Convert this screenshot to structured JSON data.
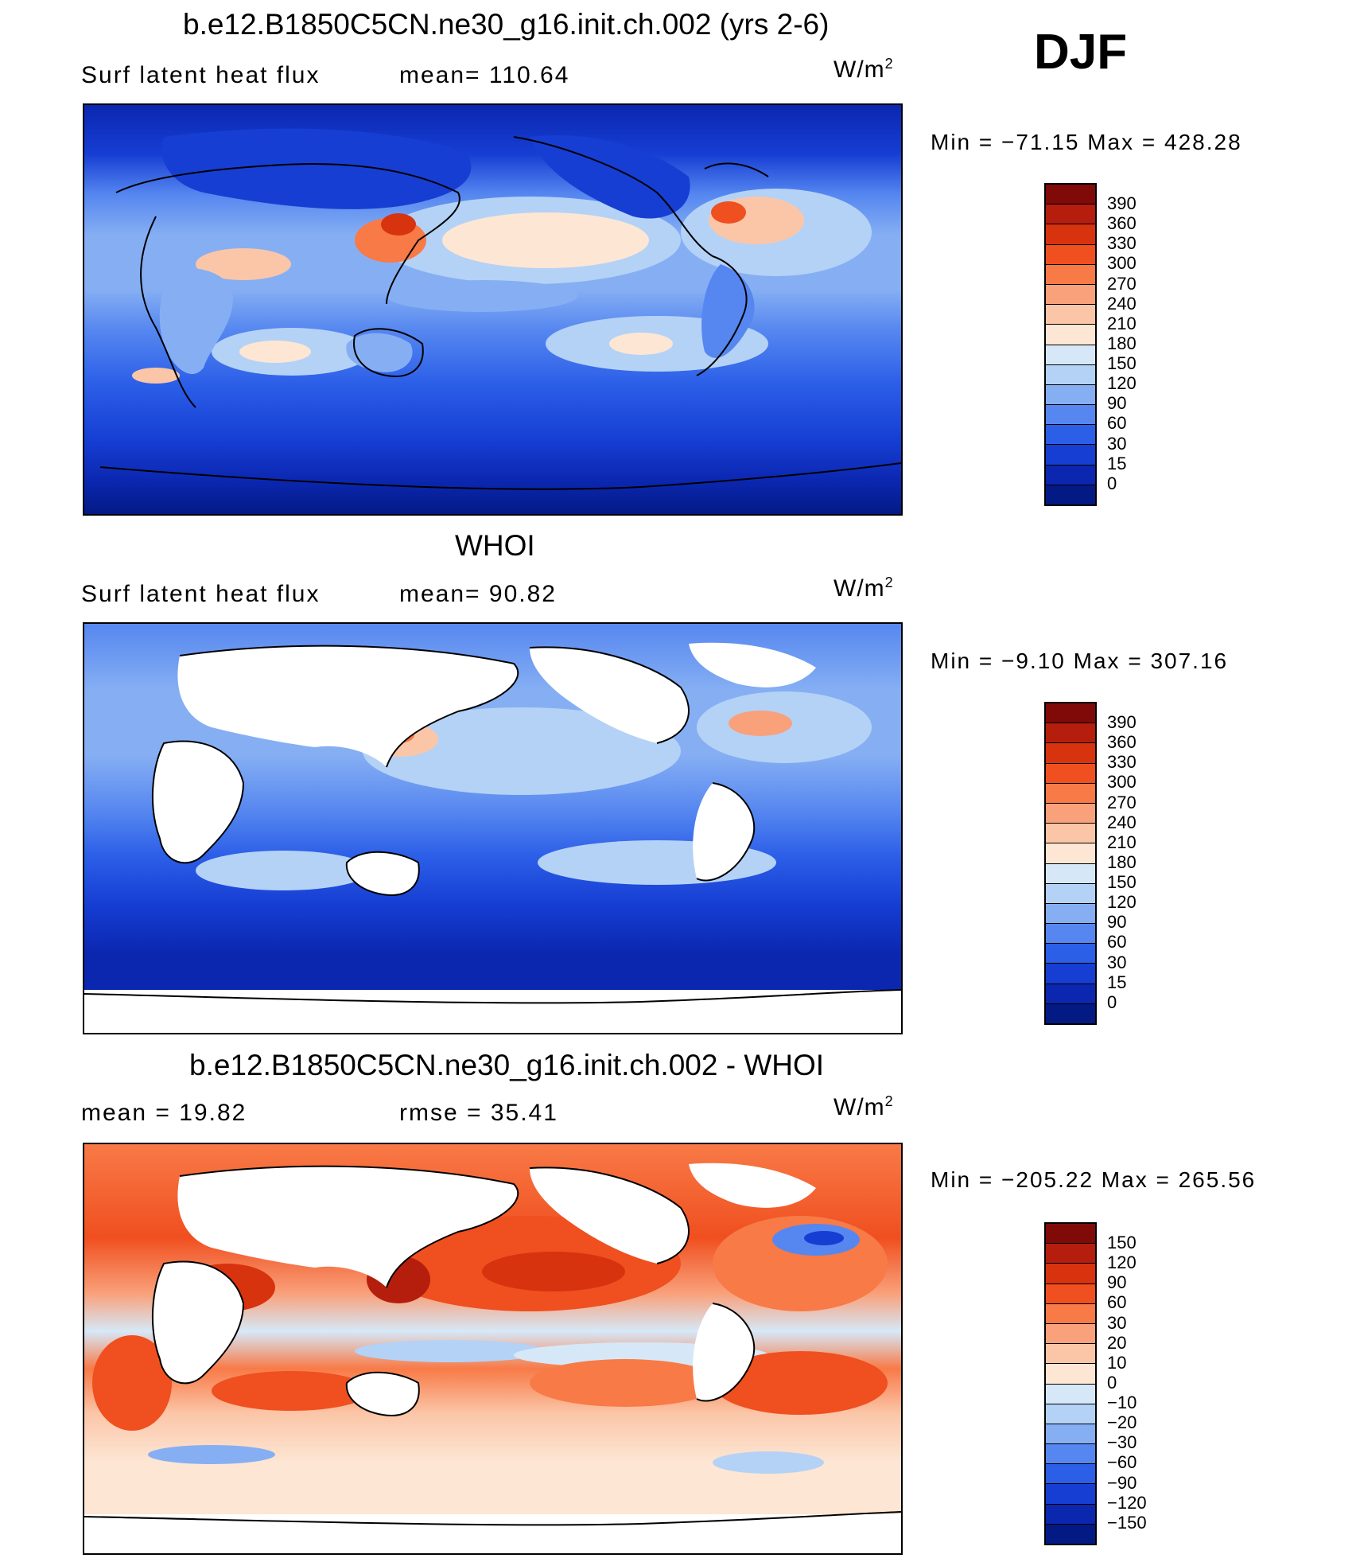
{
  "season": "DJF",
  "panels": [
    {
      "title": "b.e12.B1850C5CN.ne30_g16.init.ch.002 (yrs 2-6)",
      "left_label": "Surf  latent  heat  flux",
      "mid_label": "mean=  110.64",
      "units": "W/m",
      "units_exp": "2",
      "minmax": "Min  =  −71.15  Max  =  428.28",
      "colorbar": {
        "labels": [
          "390",
          "360",
          "330",
          "300",
          "270",
          "240",
          "210",
          "180",
          "150",
          "120",
          "90",
          "60",
          "30",
          "15",
          "0"
        ],
        "colors": [
          "#7f0a08",
          "#b51e0d",
          "#d7330f",
          "#f04f1f",
          "#f87a47",
          "#f9a17b",
          "#fbc6a8",
          "#fde6d4",
          "#d6e8f8",
          "#b4d2f6",
          "#86aff3",
          "#5687f0",
          "#2c5fe8",
          "#163ed3",
          "#0b27b0",
          "#031a84"
        ]
      }
    },
    {
      "title": "WHOI",
      "left_label": "Surf  latent  heat  flux",
      "mid_label": "mean=   90.82",
      "units": "W/m",
      "units_exp": "2",
      "minmax": "Min  =   −9.10  Max  =  307.16",
      "colorbar": {
        "labels": [
          "390",
          "360",
          "330",
          "300",
          "270",
          "240",
          "210",
          "180",
          "150",
          "120",
          "90",
          "60",
          "30",
          "15",
          "0"
        ],
        "colors": [
          "#7f0a08",
          "#b51e0d",
          "#d7330f",
          "#f04f1f",
          "#f87a47",
          "#f9a17b",
          "#fbc6a8",
          "#fde6d4",
          "#d6e8f8",
          "#b4d2f6",
          "#86aff3",
          "#5687f0",
          "#2c5fe8",
          "#163ed3",
          "#0b27b0",
          "#031a84"
        ]
      }
    },
    {
      "title": "b.e12.B1850C5CN.ne30_g16.init.ch.002 - WHOI",
      "left_label": "mean  =    19.82",
      "mid_label": "rmse  =    35.41",
      "units": "W/m",
      "units_exp": "2",
      "minmax": "Min  =  −205.22  Max  =  265.56",
      "colorbar": {
        "labels": [
          "150",
          "120",
          "90",
          "60",
          "30",
          "20",
          "10",
          "0",
          "−10",
          "−20",
          "−30",
          "−60",
          "−90",
          "−120",
          "−150"
        ],
        "colors": [
          "#7f0a08",
          "#b51e0d",
          "#d7330f",
          "#f04f1f",
          "#f87a47",
          "#f9a17b",
          "#fbc6a8",
          "#fde6d4",
          "#d6e8f8",
          "#b4d2f6",
          "#86aff3",
          "#5687f0",
          "#2c5fe8",
          "#163ed3",
          "#0b27b0",
          "#031a84"
        ]
      }
    }
  ]
}
